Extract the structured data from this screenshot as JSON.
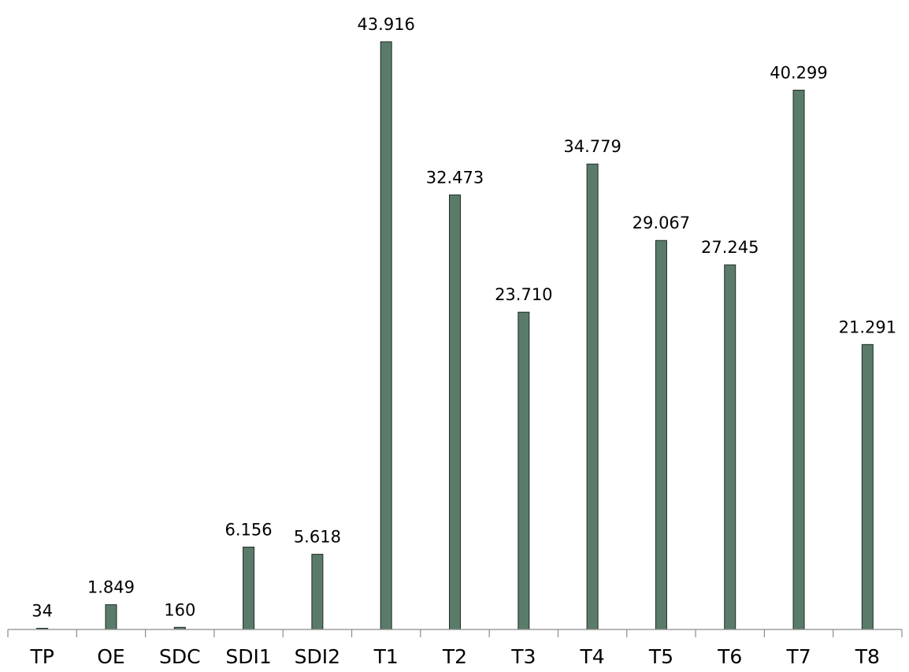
{
  "chart_data": {
    "type": "bar",
    "title": "",
    "xlabel": "",
    "ylabel": "",
    "categories": [
      "TP",
      "OE",
      "SDC",
      "SDI1",
      "SDI2",
      "T1",
      "T2",
      "T3",
      "T4",
      "T5",
      "T6",
      "T7",
      "T8"
    ],
    "values": [
      34,
      1849,
      160,
      6156,
      5618,
      43916,
      32473,
      23710,
      34779,
      29067,
      27245,
      40299,
      21291
    ],
    "value_labels": [
      "34",
      "1.849",
      "160",
      "6.156",
      "5.618",
      "43.916",
      "32.473",
      "23.710",
      "34.779",
      "29.067",
      "27.245",
      "40.299",
      "21.291"
    ],
    "ylim": [
      0,
      43916
    ],
    "grid": false,
    "legend": "none",
    "colors": {
      "bar_fill": "#5b7b6a",
      "bar_stroke": "#1f2b24",
      "axis": "#8c8c8c"
    }
  }
}
